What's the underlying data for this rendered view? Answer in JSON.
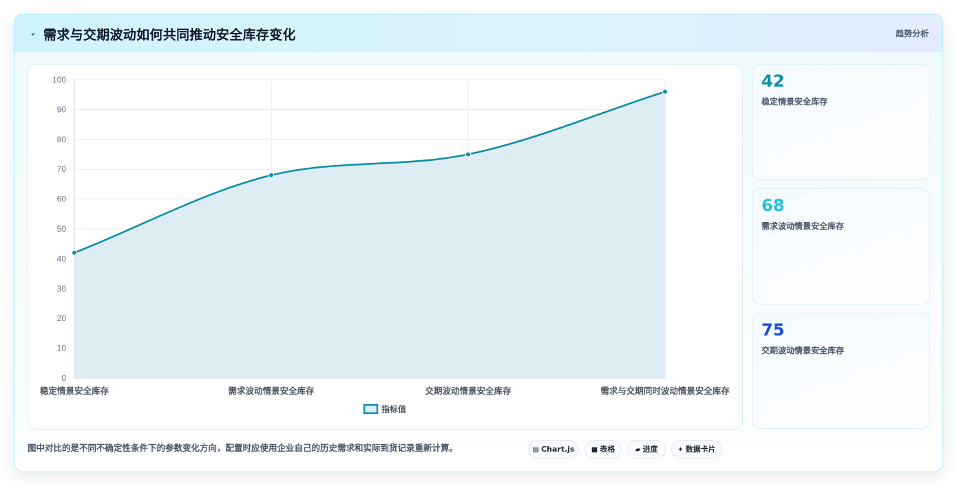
{
  "header": {
    "icon": "lightning-icon",
    "title": "需求与交期波动如何共同推动安全库存变化",
    "tag": "趋势分析"
  },
  "chart_data": {
    "type": "line",
    "categories": [
      "稳定情景安全库存",
      "需求波动情景安全库存",
      "交期波动情景安全库存",
      "需求与交期同时波动情景安全库存"
    ],
    "series": [
      {
        "name": "指标值",
        "values": [
          42,
          68,
          75,
          96
        ]
      }
    ],
    "ylim": [
      0,
      100
    ],
    "yticks": [
      0,
      10,
      20,
      30,
      40,
      50,
      60,
      70,
      80,
      90,
      100
    ],
    "area_fill": true,
    "grid": true,
    "legend": "bottom",
    "colors": {
      "line": "#0e8fa6",
      "fill": "#dcecf2"
    }
  },
  "stats": [
    {
      "value": "42",
      "label": "稳定情景安全库存",
      "color": "#0e8fa6"
    },
    {
      "value": "68",
      "label": "需求波动情景安全库存",
      "color": "#22c4dc"
    },
    {
      "value": "75",
      "label": "交期波动情景安全库存",
      "color": "#1d4ed8"
    }
  ],
  "footer": {
    "note": "图中对比的是不同不确定性条件下的参数变化方向，配置时应使用企业自己的历史需求和实际到货记录重新计算。",
    "pills": [
      {
        "icon": "chart-icon",
        "glyph": "▤",
        "label": "Chart.js"
      },
      {
        "icon": "table-icon",
        "glyph": "■",
        "label": "表格"
      },
      {
        "icon": "progress-icon",
        "glyph": "▰",
        "label": "进度"
      },
      {
        "icon": "sparkle-icon",
        "glyph": "✦",
        "label": "数据卡片"
      }
    ]
  }
}
